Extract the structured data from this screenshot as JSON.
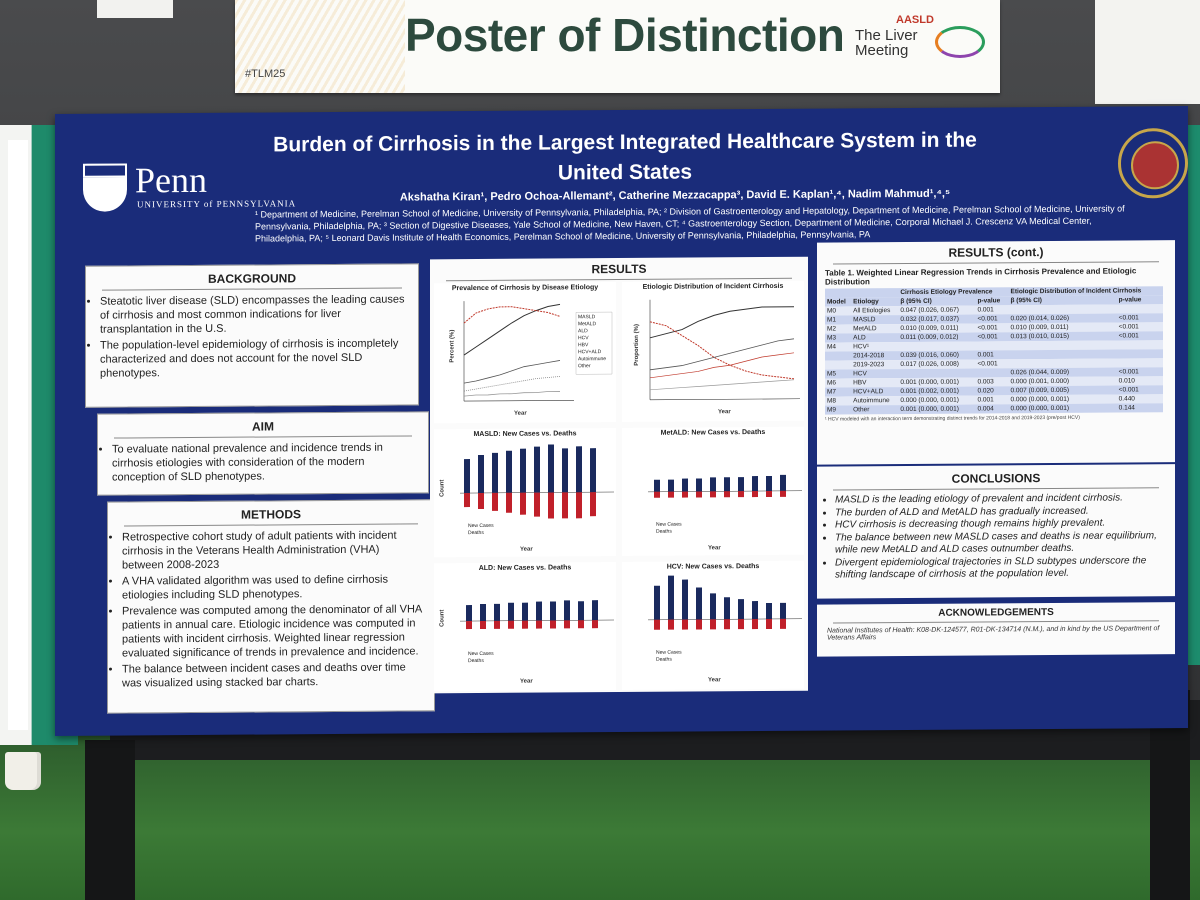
{
  "sign": {
    "headline": "Poster of Distinction",
    "hashtag": "#TLM25",
    "org": "AASLD",
    "event": "The Liver Meeting"
  },
  "poster": {
    "title": "Burden of Cirrhosis in the Largest Integrated Healthcare System in the United States",
    "authors": "Akshatha Kiran¹, Pedro Ochoa-Allemant², Catherine Mezzacappa³, David E. Kaplan¹,⁴, Nadim Mahmud¹,⁴,⁵",
    "affiliations": "¹ Department of Medicine, Perelman School of Medicine, University of Pennsylvania, Philadelphia, PA; ² Division of Gastroenterology and Hepatology, Department of Medicine, Perelman School of Medicine, University of Pennsylvania, Philadelphia, PA; ³ Section of Digestive Diseases, Yale School of Medicine, New Haven, CT; ⁴ Gastroenterology Section, Department of Medicine, Corporal Michael J. Crescenz VA Medical Center, Philadelphia, PA; ⁵ Leonard Davis Institute of Health Economics, Perelman School of Medicine, University of Pennsylvania, Philadelphia, Pennsylvania, PA",
    "logo_name": "Penn",
    "logo_sub": "UNIVERSITY of PENNSYLVANIA"
  },
  "background": {
    "heading": "BACKGROUND",
    "items": [
      "Steatotic liver disease (SLD) encompasses the leading causes of cirrhosis and most common indications for liver transplantation in the U.S.",
      "The population-level epidemiology of cirrhosis is incompletely characterized and does not account for the novel SLD phenotypes."
    ]
  },
  "aim": {
    "heading": "AIM",
    "items": [
      "To evaluate national prevalence and incidence trends in cirrhosis etiologies with consideration of the modern conception of SLD phenotypes."
    ]
  },
  "methods": {
    "heading": "METHODS",
    "items": [
      "Retrospective cohort study of adult patients with incident cirrhosis in the Veterans Health Administration (VHA) between 2008-2023",
      "A VHA validated algorithm was used to define cirrhosis etiologies including SLD phenotypes.",
      "Prevalence was computed among the denominator of all VHA patients in annual care. Etiologic incidence was computed in patients with incident cirrhosis. Weighted linear regression evaluated significance of trends in prevalence and incidence.",
      "The balance between incident cases and deaths over time was visualized using stacked bar charts."
    ]
  },
  "results": {
    "heading": "RESULTS",
    "chart1_title": "Prevalence of Cirrhosis by Disease Etiology",
    "chart1_ylabel": "Percent (%)",
    "chart2_title": "Etiologic Distribution of Incident Cirrhosis",
    "chart2_ylabel": "Proportion (%)",
    "x_label": "Year",
    "legend": [
      "MASLD",
      "MetALD",
      "ALD",
      "HCV",
      "HBV",
      "HCV+ALD",
      "Autoimmune",
      "Other"
    ],
    "bar_titles": [
      "MASLD: New Cases vs. Deaths",
      "MetALD: New Cases vs. Deaths",
      "ALD: New Cases vs. Deaths",
      "HCV: New Cases vs. Deaths"
    ],
    "count_label": "Count",
    "legend_new": "New Cases",
    "legend_deaths": "Deaths"
  },
  "results_cont": {
    "heading": "RESULTS (cont.)",
    "table_title": "Table 1. Weighted Linear Regression Trends in Cirrhosis Prevalence and Etiologic Distribution",
    "col_group1": "Cirrhosis Etiology Prevalence",
    "col_group2": "Etiologic Distribution of Incident Cirrhosis",
    "col_model": "Model",
    "col_etiology": "Etiology",
    "col_beta": "β (95% CI)",
    "col_p": "p-value",
    "rows": [
      {
        "model": "M0",
        "etiology": "All Etiologies",
        "b1": "0.047 (0.026, 0.067)",
        "p1": "0.001",
        "b2": "",
        "p2": ""
      },
      {
        "model": "M1",
        "etiology": "MASLD",
        "b1": "0.032 (0.017, 0.037)",
        "p1": "<0.001",
        "b2": "0.020 (0.014, 0.026)",
        "p2": "<0.001"
      },
      {
        "model": "M2",
        "etiology": "MetALD",
        "b1": "0.010 (0.009, 0.011)",
        "p1": "<0.001",
        "b2": "0.010 (0.009, 0.011)",
        "p2": "<0.001"
      },
      {
        "model": "M3",
        "etiology": "ALD",
        "b1": "0.011 (0.009, 0.012)",
        "p1": "<0.001",
        "b2": "0.013 (0.010, 0.015)",
        "p2": "<0.001"
      },
      {
        "model": "M4",
        "etiology": "HCV¹",
        "b1": "",
        "p1": "",
        "b2": "",
        "p2": ""
      },
      {
        "model": "",
        "etiology": "2014-2018",
        "b1": "0.039 (0.016, 0.060)",
        "p1": "0.001",
        "b2": "",
        "p2": ""
      },
      {
        "model": "",
        "etiology": "2019-2023",
        "b1": "0.017 (0.026, 0.008)",
        "p1": "<0.001",
        "b2": "",
        "p2": ""
      },
      {
        "model": "M5",
        "etiology": "HCV",
        "b1": "",
        "p1": "",
        "b2": "0.026 (0.044, 0.009)",
        "p2": "<0.001"
      },
      {
        "model": "M6",
        "etiology": "HBV",
        "b1": "0.001 (0.000, 0.001)",
        "p1": "0.003",
        "b2": "0.000 (0.001, 0.000)",
        "p2": "0.010"
      },
      {
        "model": "M7",
        "etiology": "HCV+ALD",
        "b1": "0.001 (0.002, 0.001)",
        "p1": "0.020",
        "b2": "0.007 (0.009, 0.005)",
        "p2": "<0.001"
      },
      {
        "model": "M8",
        "etiology": "Autoimmune",
        "b1": "0.000 (0.000, 0.001)",
        "p1": "0.001",
        "b2": "0.000 (0.000, 0.001)",
        "p2": "0.440"
      },
      {
        "model": "M9",
        "etiology": "Other",
        "b1": "0.001 (0.000, 0.001)",
        "p1": "0.004",
        "b2": "0.000 (0.000, 0.001)",
        "p2": "0.144"
      }
    ],
    "table_note": "¹ HCV modeled with an interaction term demonstrating distinct trends for 2014-2018 and 2019-2023 (pre/post HCV)"
  },
  "conclusions": {
    "heading": "CONCLUSIONS",
    "items": [
      "MASLD is the leading etiology of prevalent and incident cirrhosis.",
      "The burden of ALD and MetALD has gradually increased.",
      "HCV cirrhosis is decreasing though remains highly prevalent.",
      "The balance between new MASLD cases and deaths is near equilibrium, while new MetALD and ALD cases outnumber deaths.",
      "Divergent epidemiological trajectories in SLD subtypes underscore the shifting landscape of cirrhosis at the population level."
    ]
  },
  "acknowledgements": {
    "heading": "ACKNOWLEDGEMENTS",
    "text": "National Institutes of Health: K08-DK-124577, R01-DK-134714 (N.M.), and in kind by the US Department of Veterans Affairs"
  }
}
